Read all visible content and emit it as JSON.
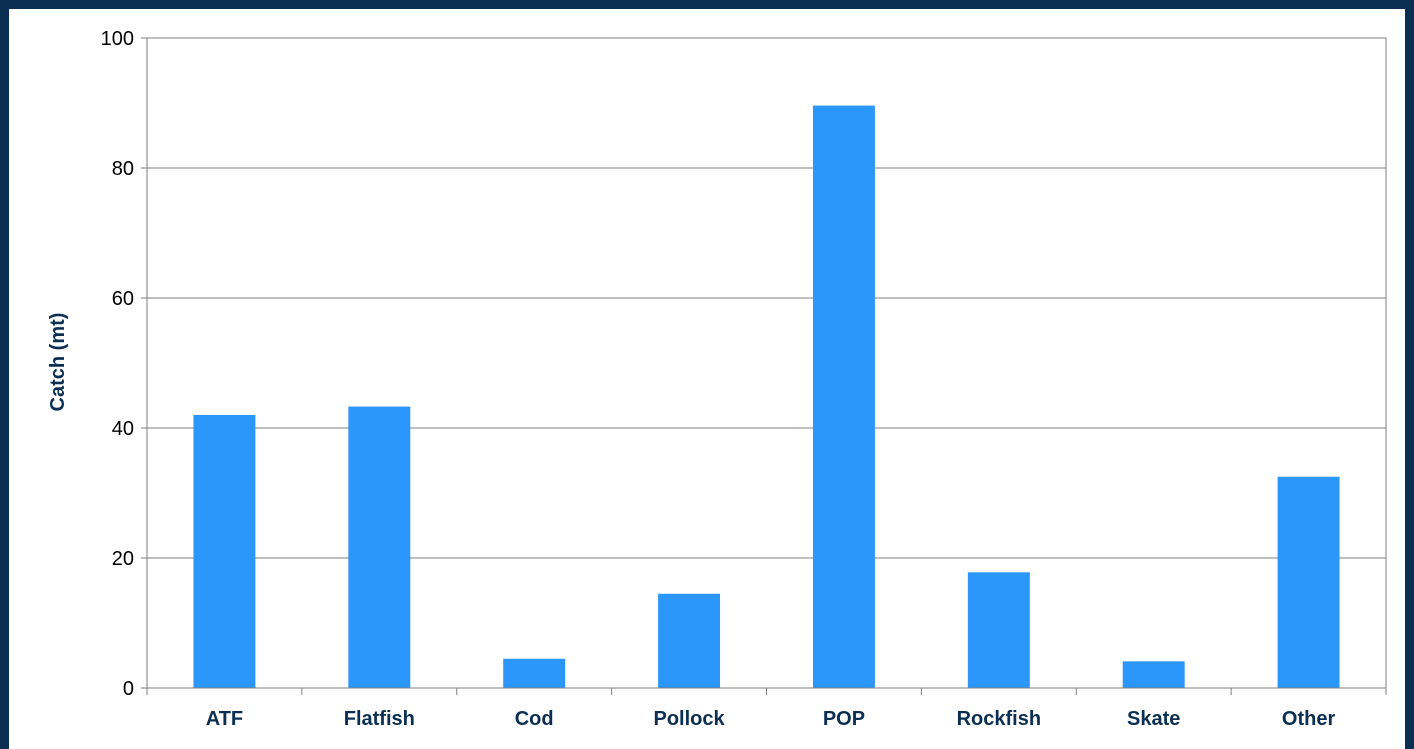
{
  "colors": {
    "bar": "#2b96fc",
    "frame": "#0b2f52",
    "gridline": "#7f7f7f",
    "axis": "#7f7f7f"
  },
  "chart_data": {
    "type": "bar",
    "categories": [
      "ATF",
      "Flatfish",
      "Cod",
      "Pollock",
      "POP",
      "Rockfish",
      "Skate",
      "Other"
    ],
    "values": [
      42,
      43.3,
      4.5,
      14.5,
      89.6,
      17.8,
      4.1,
      32.5
    ],
    "title": "",
    "xlabel": "",
    "ylabel": "Catch (mt)",
    "ylim": [
      0,
      100
    ],
    "yticks": [
      0,
      20,
      40,
      60,
      80,
      100
    ],
    "grid": true,
    "legend": "none"
  }
}
